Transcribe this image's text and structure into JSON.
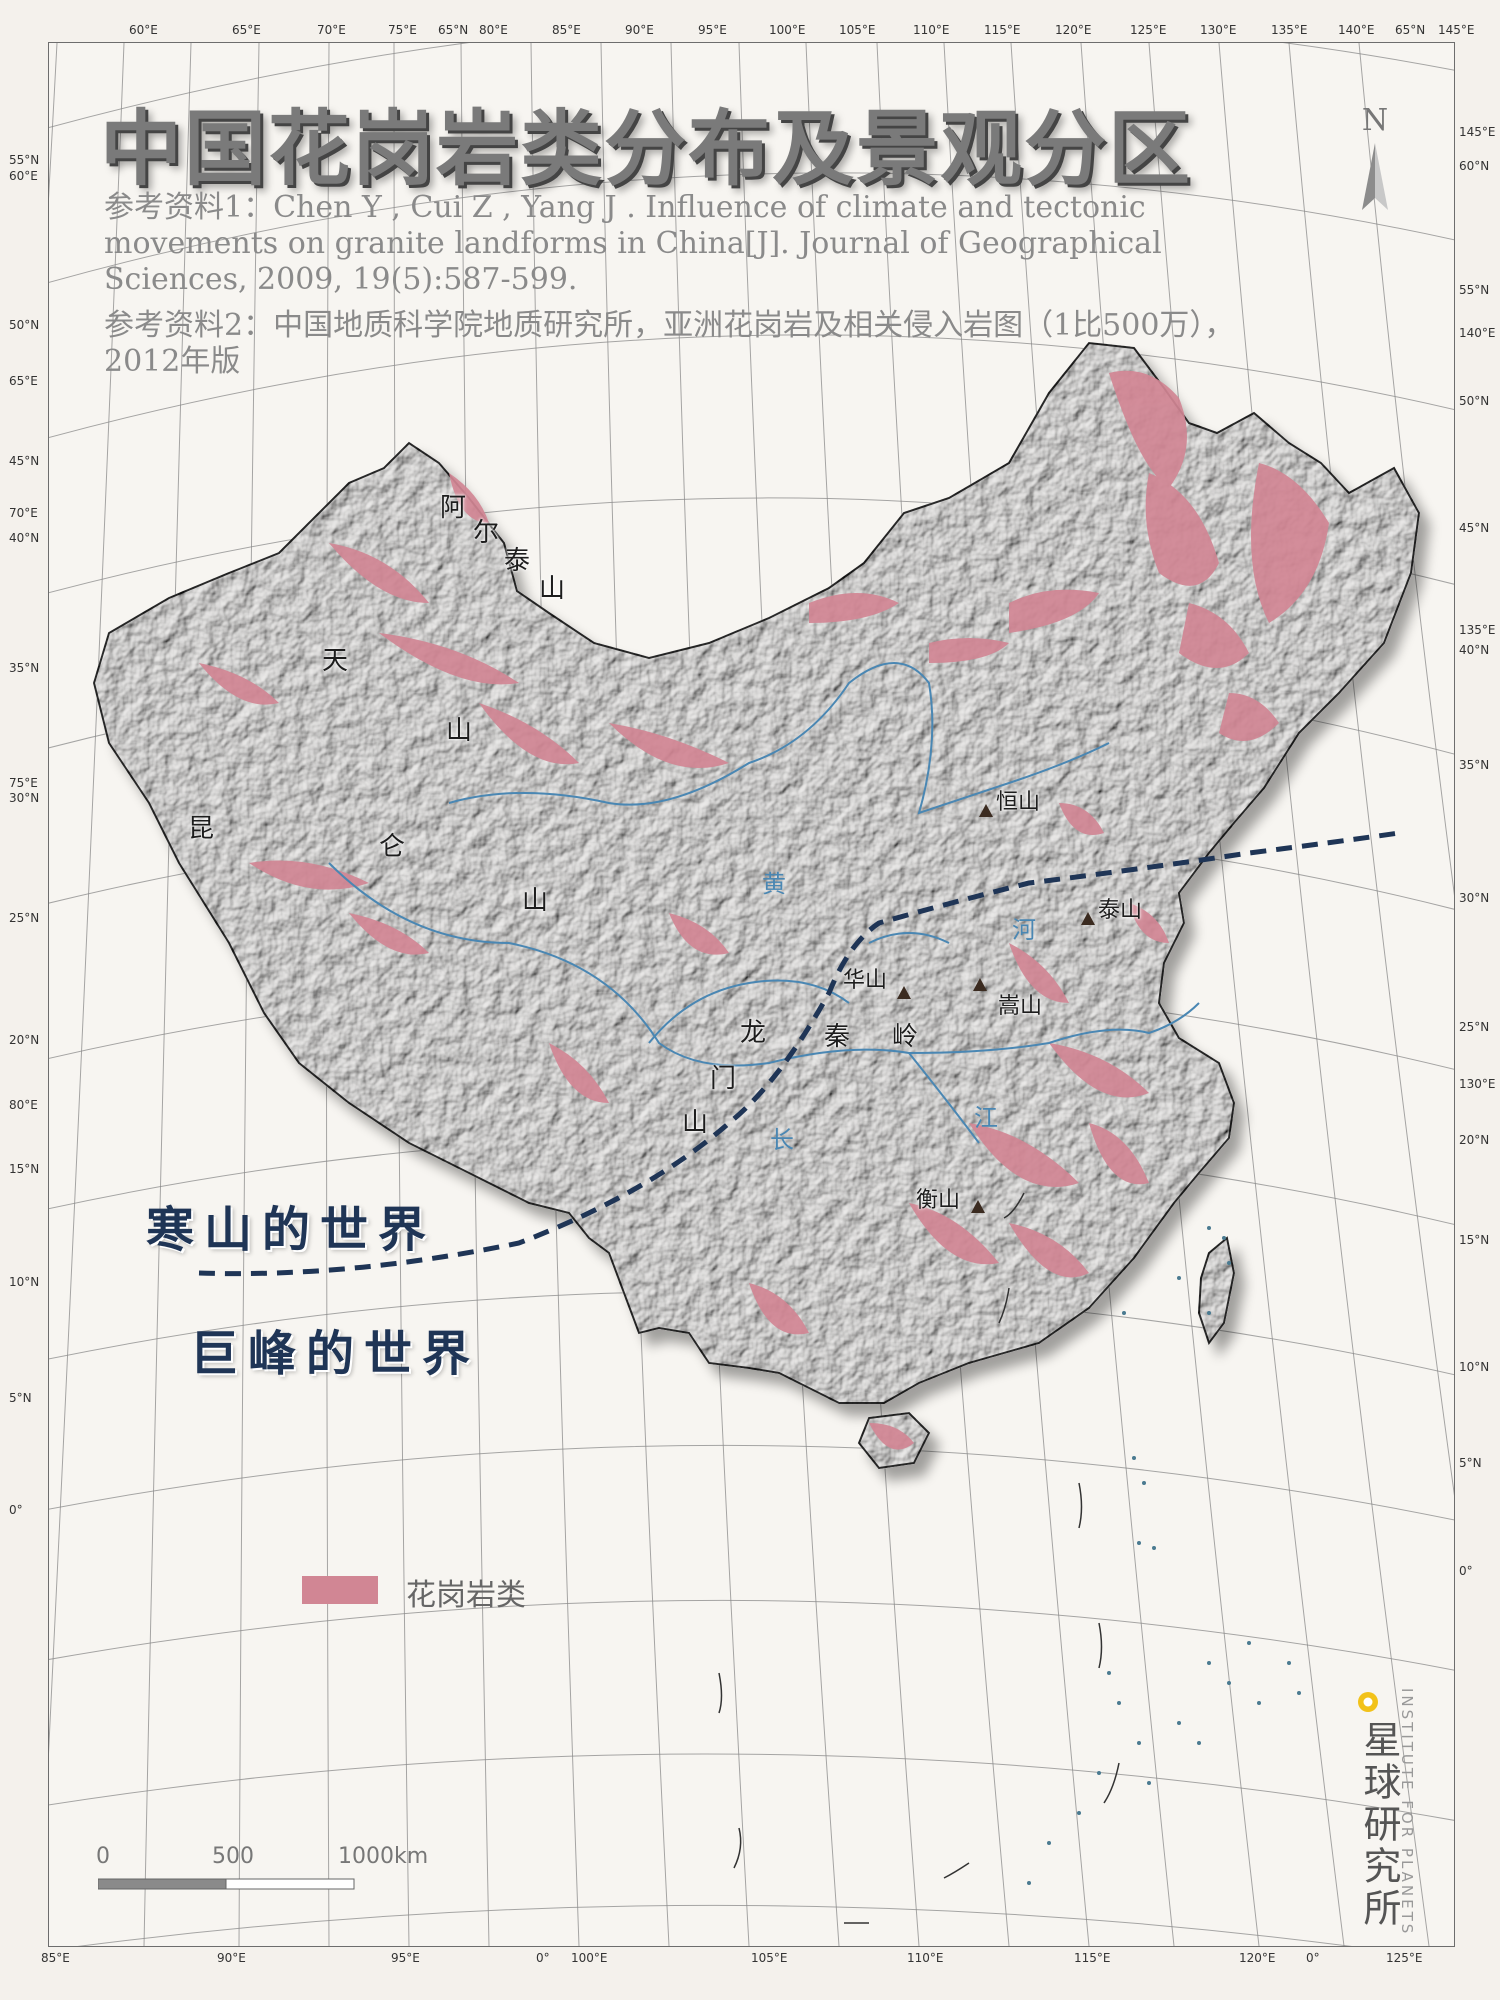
{
  "title": "中国花岗岩类分布及景观分区",
  "references": [
    "参考资料1：Chen Y , Cui Z , Yang J . Influence of climate and tectonic",
    "movements on granite landforms in China[J]. Journal of Geographical",
    "Sciences, 2009, 19(5):587-599.",
    "参考资料2：中国地质科学院地质研究所，亚洲花岗岩及相关侵入岩图（1比500万），",
    "2012年版"
  ],
  "ranges": [
    {
      "id": "altai",
      "chars": [
        "阿",
        "尔",
        "泰",
        "山"
      ]
    },
    {
      "id": "tianshan",
      "chars": [
        "天",
        "山"
      ]
    },
    {
      "id": "kunlun",
      "chars": [
        "昆",
        "仑",
        "山"
      ]
    },
    {
      "id": "longmen",
      "chars": [
        "龙",
        "门",
        "山"
      ]
    },
    {
      "id": "qinling",
      "chars": [
        "秦",
        "岭"
      ]
    }
  ],
  "peaks": [
    {
      "id": "hengshan-north",
      "label": "恒山"
    },
    {
      "id": "taishan",
      "label": "泰山"
    },
    {
      "id": "huashan",
      "label": "华山"
    },
    {
      "id": "songshan",
      "label": "嵩山"
    },
    {
      "id": "hengshan-south",
      "label": "衡山"
    }
  ],
  "rivers": {
    "huanghe": [
      "黄",
      "河"
    ],
    "changjiang": [
      "长",
      "江"
    ]
  },
  "zones": {
    "north": "寒山的世界",
    "south": "巨峰的世界"
  },
  "legend": {
    "label": "花岗岩类",
    "color": "#d18694"
  },
  "scale": {
    "labels": [
      "0",
      "500",
      "1000km"
    ]
  },
  "north_arrow": {
    "label": "N"
  },
  "institute": {
    "cn": "星球研究所",
    "en": "INSTITUTE FOR PLANETS"
  },
  "graticule": {
    "top": [
      "60°E",
      "65°E",
      "70°E",
      "75°E",
      "65°N",
      "80°E",
      "85°E",
      "90°E",
      "95°E",
      "100°E",
      "105°E",
      "110°E",
      "115°E",
      "120°E",
      "125°E",
      "130°E",
      "135°E",
      "140°E",
      "65°N",
      "145°E"
    ],
    "left": [
      "55°N",
      "60°E",
      "50°N",
      "65°E",
      "45°N",
      "70°E",
      "40°N",
      "35°N",
      "75°E",
      "30°N",
      "25°N",
      "20°N",
      "80°E",
      "15°N",
      "10°N",
      "5°N",
      "0°"
    ],
    "right": [
      "145°E",
      "60°N",
      "55°N",
      "140°E",
      "50°N",
      "45°N",
      "135°E",
      "40°N",
      "35°N",
      "30°N",
      "25°N",
      "130°E",
      "20°N",
      "15°N",
      "10°N",
      "5°N",
      "0°"
    ],
    "bottom": [
      "85°E",
      "90°E",
      "95°E",
      "0°",
      "100°E",
      "105°E",
      "110°E",
      "115°E",
      "120°E",
      "0°",
      "125°E"
    ]
  }
}
